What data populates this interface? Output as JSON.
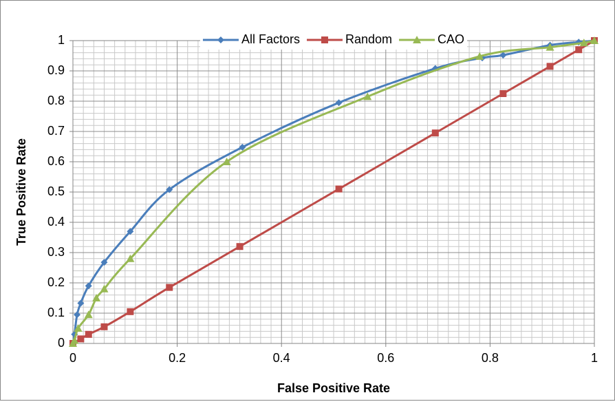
{
  "chart_data": {
    "type": "line",
    "xlabel": "False Positive Rate",
    "ylabel": "True Positive Rate",
    "xlim": [
      0,
      1
    ],
    "ylim": [
      0,
      1
    ],
    "xticks": [
      0,
      0.2,
      0.4,
      0.6,
      0.8,
      1
    ],
    "yticks": [
      0,
      0.1,
      0.2,
      0.3,
      0.4,
      0.5,
      0.6,
      0.7,
      0.8,
      0.9,
      1
    ],
    "grid": true,
    "minor_grid": {
      "x": 10,
      "y": 5
    },
    "smooth": true,
    "legend": "top",
    "series": [
      {
        "name": "All Factors",
        "color": "#4a7ebb",
        "marker": "diamond",
        "x": [
          0,
          0.003,
          0.008,
          0.015,
          0.03,
          0.06,
          0.11,
          0.185,
          0.325,
          0.51,
          0.695,
          0.785,
          0.825,
          0.915,
          0.97,
          1
        ],
        "values": [
          0,
          0.03,
          0.095,
          0.133,
          0.19,
          0.268,
          0.37,
          0.508,
          0.648,
          0.795,
          0.908,
          0.943,
          0.952,
          0.985,
          0.995,
          1
        ]
      },
      {
        "name": "Random",
        "color": "#be4b48",
        "marker": "square",
        "x": [
          0,
          0.015,
          0.03,
          0.06,
          0.11,
          0.185,
          0.32,
          0.51,
          0.695,
          0.825,
          0.915,
          0.97,
          1
        ],
        "values": [
          0,
          0.015,
          0.03,
          0.055,
          0.105,
          0.185,
          0.32,
          0.51,
          0.695,
          0.825,
          0.915,
          0.97,
          1
        ]
      },
      {
        "name": "CAO",
        "color": "#98b954",
        "marker": "triangle",
        "x": [
          0,
          0.003,
          0.01,
          0.03,
          0.045,
          0.06,
          0.11,
          0.295,
          0.565,
          0.78,
          0.915,
          0.98,
          1
        ],
        "values": [
          0,
          0.01,
          0.05,
          0.095,
          0.15,
          0.18,
          0.28,
          0.6,
          0.815,
          0.948,
          0.978,
          0.993,
          1
        ]
      }
    ]
  }
}
